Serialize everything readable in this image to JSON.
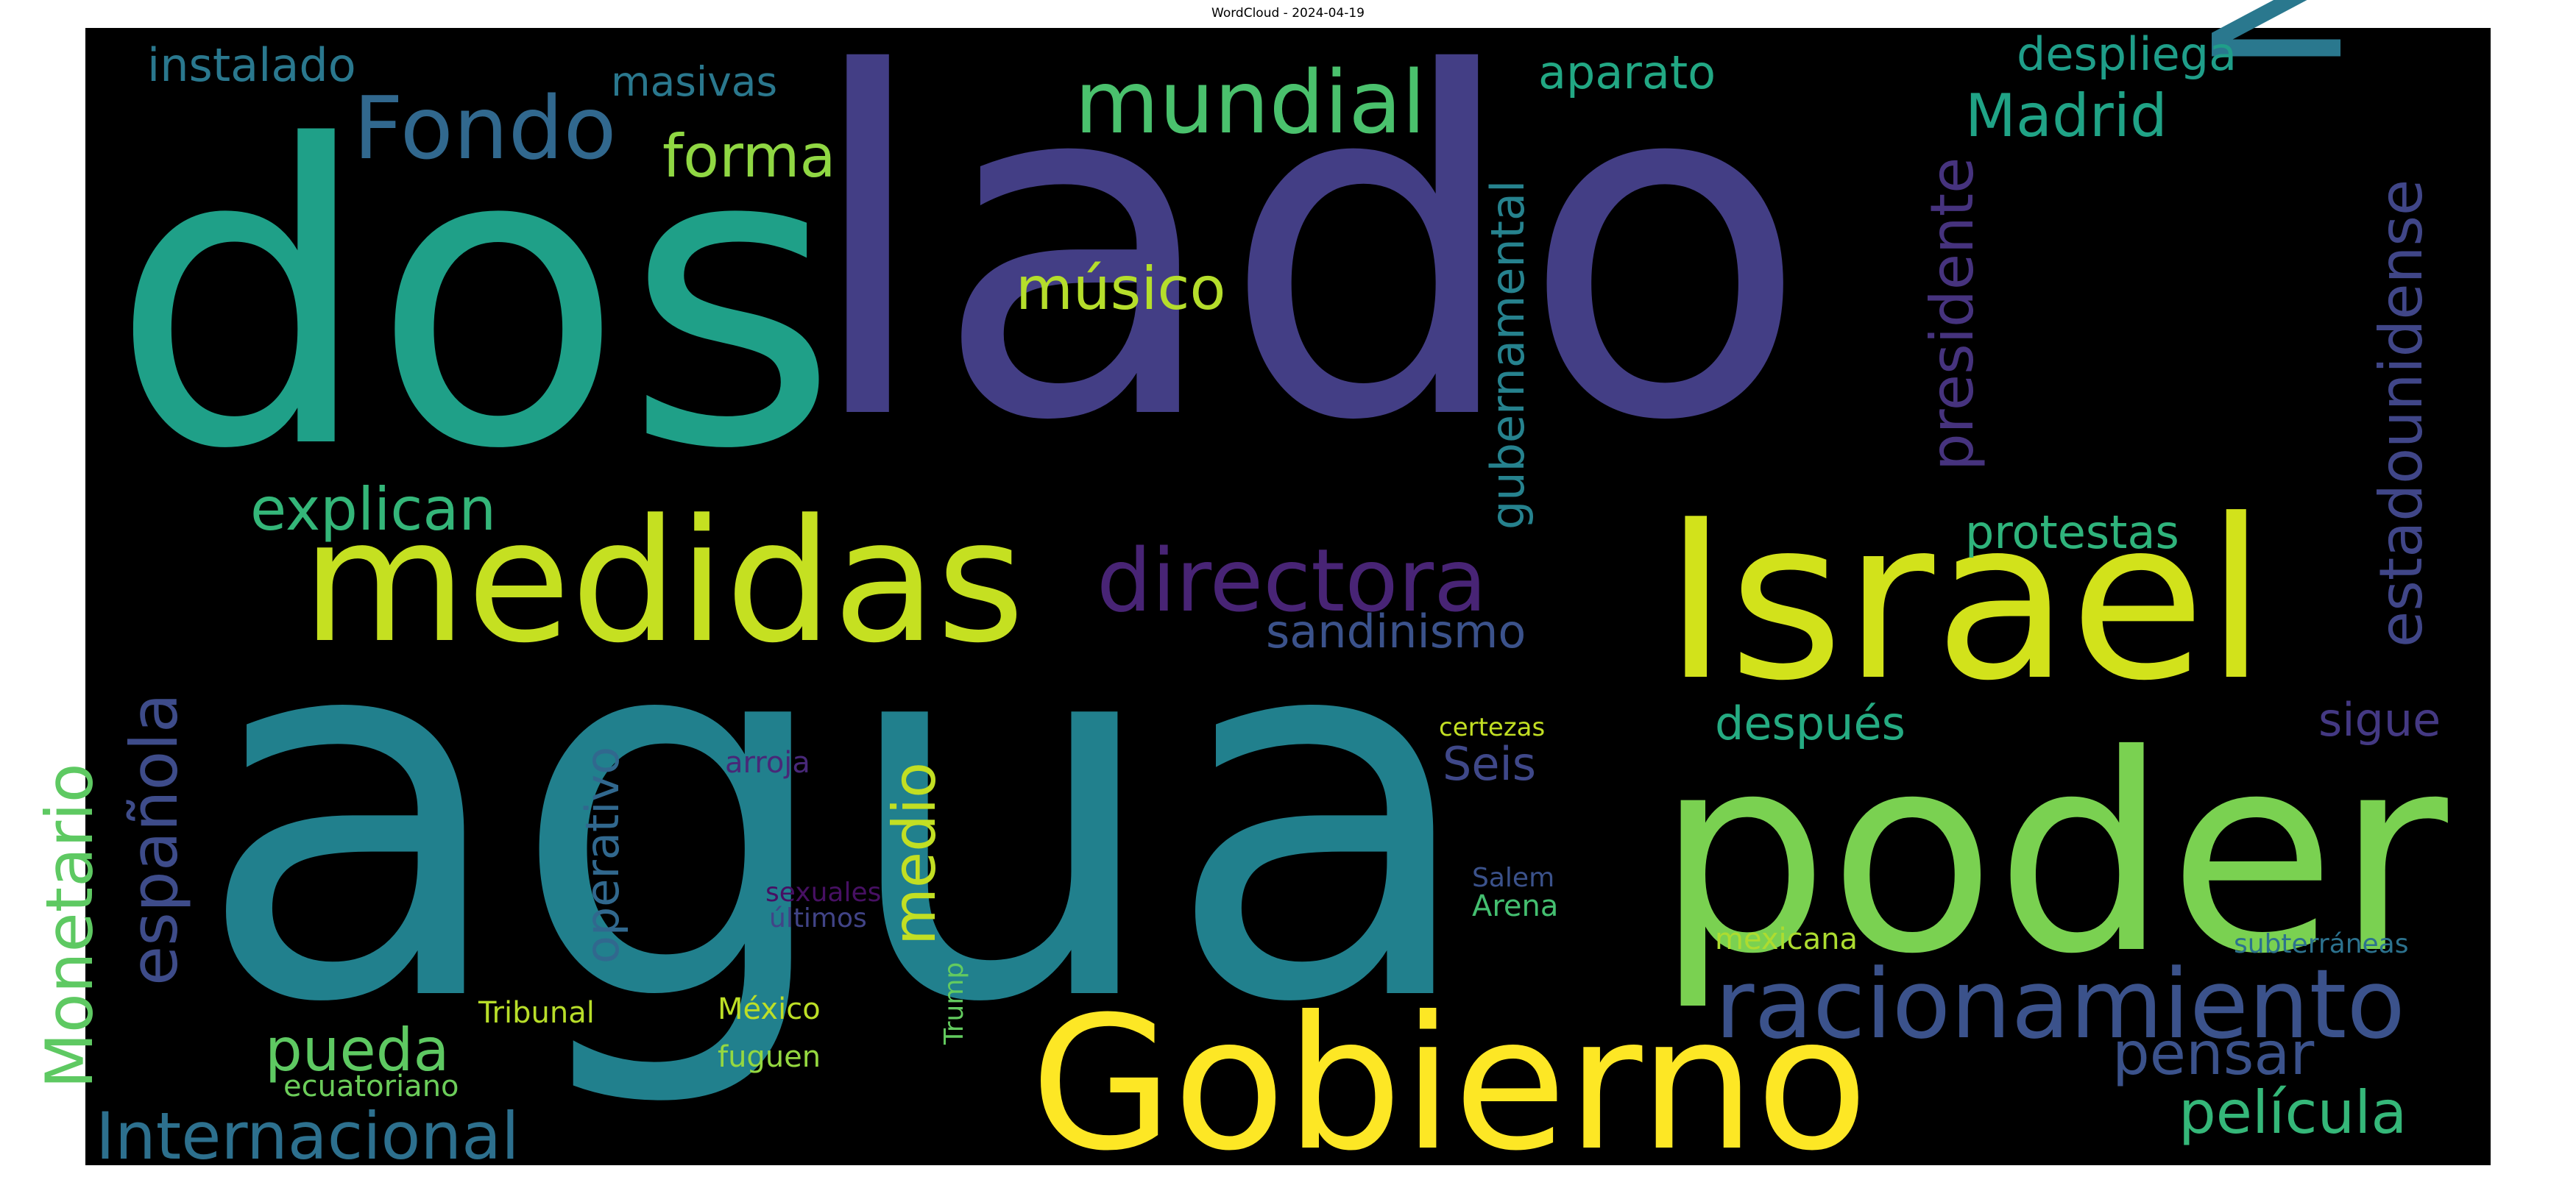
{
  "title": "WordCloud - 2024-04-19",
  "chart_data": {
    "type": "wordcloud",
    "title": "WordCloud - 2024-04-19",
    "background": "#000000",
    "colormap": "viridis",
    "words": [
      {
        "text": "agua",
        "size": 100,
        "color": "#21808d"
      },
      {
        "text": "lado",
        "size": 98,
        "color": "#433e85"
      },
      {
        "text": "dos",
        "size": 80,
        "color": "#1fa088"
      },
      {
        "text": "Gobierno",
        "size": 60,
        "color": "#fde725"
      },
      {
        "text": "poder",
        "size": 58,
        "color": "#7ad151"
      },
      {
        "text": "Israel",
        "size": 56,
        "color": "#d2e21b"
      },
      {
        "text": "medidas",
        "size": 54,
        "color": "#c5e021"
      },
      {
        "text": "Niño",
        "size": 52,
        "color": "#2a788e"
      },
      {
        "text": "racionamiento",
        "size": 40,
        "color": "#3b528b"
      },
      {
        "text": "directora",
        "size": 36,
        "color": "#482475"
      },
      {
        "text": "mundial",
        "size": 34,
        "color": "#4ac16d"
      },
      {
        "text": "Fondo",
        "size": 34,
        "color": "#31688e"
      },
      {
        "text": "Internacional",
        "size": 30,
        "color": "#2d708e"
      },
      {
        "text": "Monetario",
        "size": 30,
        "color": "#5ec962"
      },
      {
        "text": "española",
        "size": 30,
        "color": "#3e4c8a"
      },
      {
        "text": "estadounidense",
        "size": 28,
        "color": "#404688"
      },
      {
        "text": "película",
        "size": 28,
        "color": "#35b779"
      },
      {
        "text": "pensar",
        "size": 28,
        "color": "#3b528b"
      },
      {
        "text": "explican",
        "size": 26,
        "color": "#34b679"
      },
      {
        "text": "pueda",
        "size": 26,
        "color": "#5ec962"
      },
      {
        "text": "medio",
        "size": 26,
        "color": "#c2df23"
      },
      {
        "text": "Madrid",
        "size": 26,
        "color": "#20a386"
      },
      {
        "text": "forma",
        "size": 26,
        "color": "#90d743"
      },
      {
        "text": "presidente",
        "size": 26,
        "color": "#46337e"
      },
      {
        "text": "músico",
        "size": 26,
        "color": "#b5de2b"
      },
      {
        "text": "aparato",
        "size": 22,
        "color": "#22a884"
      },
      {
        "text": "despliega",
        "size": 22,
        "color": "#1f9e89"
      },
      {
        "text": "instalado",
        "size": 22,
        "color": "#2a788e"
      },
      {
        "text": "gubernamental",
        "size": 22,
        "color": "#26828e"
      },
      {
        "text": "protestas",
        "size": 22,
        "color": "#2fb47c"
      },
      {
        "text": "operativo",
        "size": 22,
        "color": "#31688e"
      },
      {
        "text": "sandinismo",
        "size": 22,
        "color": "#3b528b"
      },
      {
        "text": "después",
        "size": 22,
        "color": "#25ab82"
      },
      {
        "text": "sigue",
        "size": 22,
        "color": "#443983"
      },
      {
        "text": "Seis",
        "size": 22,
        "color": "#3f4889"
      },
      {
        "text": "masivas",
        "size": 18,
        "color": "#2a788e"
      },
      {
        "text": "Arena",
        "size": 18,
        "color": "#44bf70"
      },
      {
        "text": "Tribunal",
        "size": 18,
        "color": "#b8de29"
      },
      {
        "text": "México",
        "size": 18,
        "color": "#bddf26"
      },
      {
        "text": "ecuatoriano",
        "size": 18,
        "color": "#6ccd5a"
      },
      {
        "text": "mexicana",
        "size": 18,
        "color": "#addc30"
      },
      {
        "text": "fuguen",
        "size": 18,
        "color": "#95d840"
      },
      {
        "text": "subterráneas",
        "size": 18,
        "color": "#2c728e"
      },
      {
        "text": "Trump",
        "size": 18,
        "color": "#63cb5f"
      },
      {
        "text": "arroja",
        "size": 18,
        "color": "#482878"
      },
      {
        "text": "sexuales",
        "size": 18,
        "color": "#471063"
      },
      {
        "text": "últimos",
        "size": 18,
        "color": "#414487"
      },
      {
        "text": "Salem",
        "size": 18,
        "color": "#3b528b"
      },
      {
        "text": "certezas",
        "size": 14,
        "color": "#c2df23"
      }
    ]
  }
}
